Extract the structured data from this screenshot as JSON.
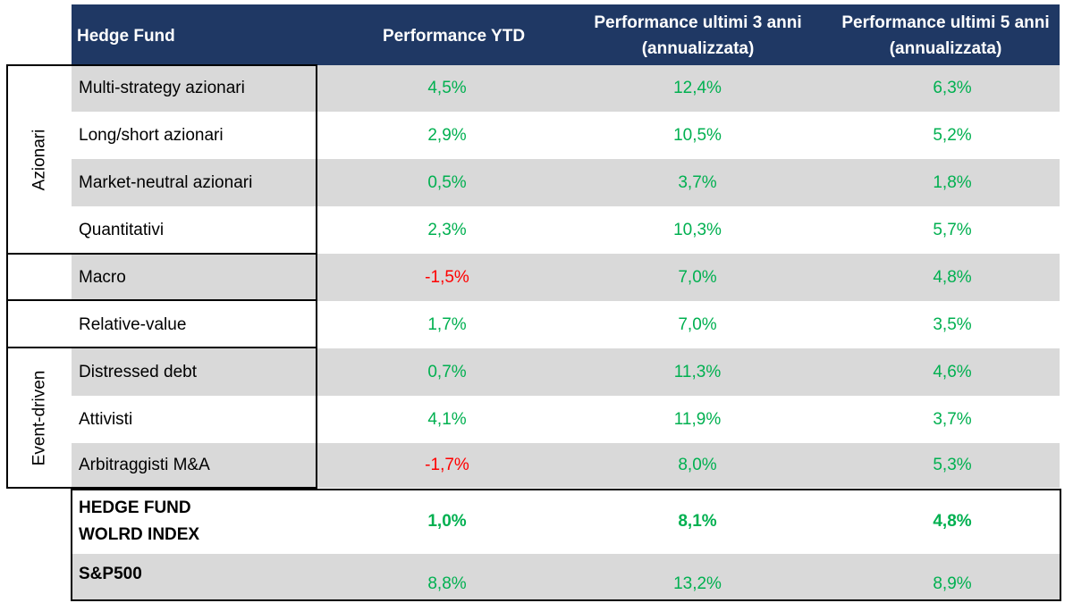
{
  "headers": {
    "name": "Hedge Fund",
    "ytd": "Performance YTD",
    "y3": "Performance ultimi 3 anni (annualizzata)",
    "y5": "Performance ultimi 5 anni (annualizzata)"
  },
  "groups": {
    "azionari": "Azionari",
    "event_driven": "Event-driven"
  },
  "rows": [
    {
      "name": "Multi-strategy azionari",
      "ytd": "4,5%",
      "y3": "12,4%",
      "y5": "6,3%"
    },
    {
      "name": "Long/short azionari",
      "ytd": "2,9%",
      "y3": "10,5%",
      "y5": "5,2%"
    },
    {
      "name": "Market-neutral azionari",
      "ytd": "0,5%",
      "y3": "3,7%",
      "y5": "1,8%"
    },
    {
      "name": "Quantitativi",
      "ytd": "2,3%",
      "y3": "10,3%",
      "y5": "5,7%"
    },
    {
      "name": "Macro",
      "ytd": "-1,5%",
      "y3": "7,0%",
      "y5": "4,8%"
    },
    {
      "name": "Relative-value",
      "ytd": "1,7%",
      "y3": "7,0%",
      "y5": "3,5%"
    },
    {
      "name": "Distressed debt",
      "ytd": "0,7%",
      "y3": "11,3%",
      "y5": "4,6%"
    },
    {
      "name": "Attivisti",
      "ytd": "4,1%",
      "y3": "11,9%",
      "y5": "3,7%"
    },
    {
      "name": "Arbitraggisti M&A",
      "ytd": "-1,7%",
      "y3": "8,0%",
      "y5": "5,3%"
    }
  ],
  "index_row": {
    "name_line1": "HEDGE FUND",
    "name_line2": "WOLRD INDEX",
    "ytd": "1,0%",
    "y3": "8,1%",
    "y5": "4,8%"
  },
  "sp500_row": {
    "name": "S&P500",
    "ytd": "8,8%",
    "y3": "13,2%",
    "y5": "8,9%"
  },
  "colors": {
    "header_bg": "#1f3864",
    "positive": "#00b050",
    "negative": "#ff0000",
    "row_shade": "#d9d9d9"
  }
}
